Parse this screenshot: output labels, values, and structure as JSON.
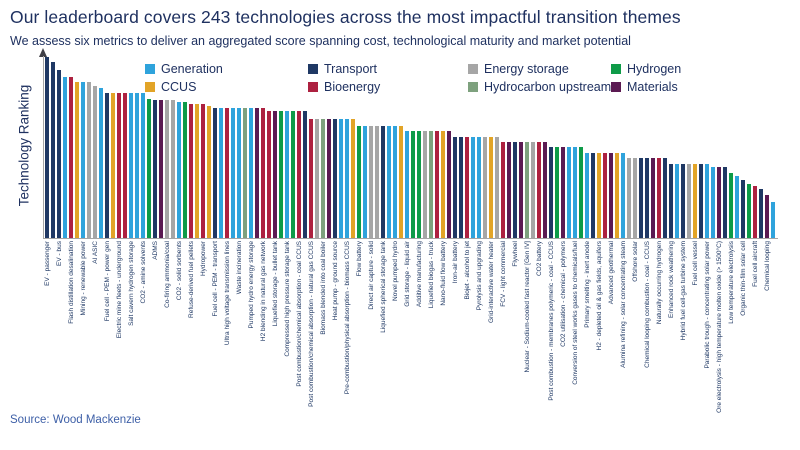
{
  "source": "Source: Wood Mackenzie",
  "chart_data": {
    "type": "bar",
    "title": "Our leaderboard covers 243 technologies across the most impactful transition themes",
    "subtitle": "We assess six metrics to deliver an aggregated score spanning cost, technological maturity and market potential",
    "ylabel": "Technology Ranking",
    "xlabel": "",
    "grid": "off",
    "legend_position": "top",
    "ylim": [
      0,
      100
    ],
    "note": "Scores are relative ranking heights (100 = top-ranked technology); axis has no numeric ticks",
    "legend": [
      {
        "key": "generation",
        "label": "Generation",
        "color": "#2FA3DC"
      },
      {
        "key": "transport",
        "label": "Transport",
        "color": "#1F3864"
      },
      {
        "key": "energy_storage",
        "label": "Energy storage",
        "color": "#A6A6A6"
      },
      {
        "key": "hydrogen",
        "label": "Hydrogen",
        "color": "#0E9B48"
      },
      {
        "key": "ccus",
        "label": "CCUS",
        "color": "#E2A427"
      },
      {
        "key": "bioenergy",
        "label": "Bioenergy",
        "color": "#AD2140"
      },
      {
        "key": "hydrocarbon_upstream",
        "label": "Hydrocarbon upstream",
        "color": "#7EA17E"
      },
      {
        "key": "materials",
        "label": "Materials",
        "color": "#5B1A52"
      }
    ],
    "bars": [
      {
        "label": "EV - passenger",
        "category": "transport",
        "score": 100
      },
      {
        "label": "",
        "category": "transport",
        "score": 97
      },
      {
        "label": "EV - bus",
        "category": "transport",
        "score": 93
      },
      {
        "label": "",
        "category": "generation",
        "score": 89
      },
      {
        "label": "Flash distillation desalination",
        "category": "bioenergy",
        "score": 89
      },
      {
        "label": "",
        "category": "ccus",
        "score": 86
      },
      {
        "label": "Mining - renewable power",
        "category": "generation",
        "score": 86
      },
      {
        "label": "",
        "category": "energy_storage",
        "score": 86
      },
      {
        "label": "AI ASIC",
        "category": "energy_storage",
        "score": 84
      },
      {
        "label": "",
        "category": "generation",
        "score": 83
      },
      {
        "label": "Fuel cell - PEM - power gen",
        "category": "transport",
        "score": 80
      },
      {
        "label": "",
        "category": "ccus",
        "score": 80
      },
      {
        "label": "Electric mine fleets - underground",
        "category": "bioenergy",
        "score": 80
      },
      {
        "label": "",
        "category": "bioenergy",
        "score": 80
      },
      {
        "label": "Salt cavern hydrogen storage",
        "category": "generation",
        "score": 80
      },
      {
        "label": "",
        "category": "generation",
        "score": 80
      },
      {
        "label": "CO2 - amine solvents",
        "category": "generation",
        "score": 80
      },
      {
        "label": "",
        "category": "hydrogen",
        "score": 77
      },
      {
        "label": "ADMS",
        "category": "transport",
        "score": 76
      },
      {
        "label": "",
        "category": "materials",
        "score": 76
      },
      {
        "label": "Co-firing ammonia/coal",
        "category": "energy_storage",
        "score": 76
      },
      {
        "label": "",
        "category": "energy_storage",
        "score": 76
      },
      {
        "label": "CO2 - solid sorbents",
        "category": "generation",
        "score": 75
      },
      {
        "label": "",
        "category": "hydrogen",
        "score": 75
      },
      {
        "label": "Refuse-derived fuel pellets",
        "category": "bioenergy",
        "score": 74
      },
      {
        "label": "",
        "category": "ccus",
        "score": 74
      },
      {
        "label": "Hydropower",
        "category": "bioenergy",
        "score": 74
      },
      {
        "label": "",
        "category": "ccus",
        "score": 73
      },
      {
        "label": "Fuel cell - PEM - transport",
        "category": "transport",
        "score": 72
      },
      {
        "label": "",
        "category": "generation",
        "score": 72
      },
      {
        "label": "Ultra high voltage transmission lines",
        "category": "bioenergy",
        "score": 72
      },
      {
        "label": "",
        "category": "generation",
        "score": 72
      },
      {
        "label": "Waste incineration",
        "category": "generation",
        "score": 72
      },
      {
        "label": "",
        "category": "hydrocarbon_upstream",
        "score": 72
      },
      {
        "label": "Pumped hydro energy storage",
        "category": "generation",
        "score": 72
      },
      {
        "label": "",
        "category": "materials",
        "score": 72
      },
      {
        "label": "H2 blending in natural gas network",
        "category": "bioenergy",
        "score": 72
      },
      {
        "label": "",
        "category": "bioenergy",
        "score": 70
      },
      {
        "label": "Liquefied storage - bullet tank",
        "category": "materials",
        "score": 70
      },
      {
        "label": "",
        "category": "hydrogen",
        "score": 70
      },
      {
        "label": "Compressed high pressure storage tank",
        "category": "generation",
        "score": 70
      },
      {
        "label": "",
        "category": "hydrogen",
        "score": 70
      },
      {
        "label": "Post combustion/chemical absorption - coal CCUS",
        "category": "bioenergy",
        "score": 70
      },
      {
        "label": "",
        "category": "transport",
        "score": 70
      },
      {
        "label": "Post combustion/chemical absorption - natural gas CCUS",
        "category": "bioenergy",
        "score": 66
      },
      {
        "label": "",
        "category": "energy_storage",
        "score": 66
      },
      {
        "label": "Biomass blended into coal boiler",
        "category": "hydrocarbon_upstream",
        "score": 66
      },
      {
        "label": "",
        "category": "materials",
        "score": 66
      },
      {
        "label": "Heat pump - ground source",
        "category": "transport",
        "score": 66
      },
      {
        "label": "",
        "category": "generation",
        "score": 66
      },
      {
        "label": "Pre-combustion/physical absorption - biomass CCUS",
        "category": "generation",
        "score": 66
      },
      {
        "label": "",
        "category": "ccus",
        "score": 66
      },
      {
        "label": "Flow battery",
        "category": "hydrogen",
        "score": 62
      },
      {
        "label": "",
        "category": "generation",
        "score": 62
      },
      {
        "label": "Direct air capture - solid",
        "category": "energy_storage",
        "score": 62
      },
      {
        "label": "",
        "category": "energy_storage",
        "score": 62
      },
      {
        "label": "Liquefied spherical storage tank",
        "category": "transport",
        "score": 62
      },
      {
        "label": "",
        "category": "generation",
        "score": 62
      },
      {
        "label": "Novel pumped hydro",
        "category": "generation",
        "score": 62
      },
      {
        "label": "",
        "category": "ccus",
        "score": 62
      },
      {
        "label": "Grid storage - liquid air",
        "category": "generation",
        "score": 59
      },
      {
        "label": "",
        "category": "hydrogen",
        "score": 59
      },
      {
        "label": "Additive manufacturing",
        "category": "hydrogen",
        "score": 59
      },
      {
        "label": "",
        "category": "energy_storage",
        "score": 59
      },
      {
        "label": "Liquefied biogas - truck",
        "category": "hydrocarbon_upstream",
        "score": 59
      },
      {
        "label": "",
        "category": "bioenergy",
        "score": 59
      },
      {
        "label": "Nano-fluid flow battery",
        "category": "ccus",
        "score": 59
      },
      {
        "label": "",
        "category": "materials",
        "score": 59
      },
      {
        "label": "Iron-air battery",
        "category": "transport",
        "score": 56
      },
      {
        "label": "",
        "category": "transport",
        "score": 56
      },
      {
        "label": "Biojet - alcohol to jet",
        "category": "bioenergy",
        "score": 56
      },
      {
        "label": "",
        "category": "generation",
        "score": 56
      },
      {
        "label": "Pyrolysis and upgrading",
        "category": "generation",
        "score": 56
      },
      {
        "label": "",
        "category": "energy_storage",
        "score": 56
      },
      {
        "label": "Grid-interactive water heater",
        "category": "ccus",
        "score": 56
      },
      {
        "label": "",
        "category": "energy_storage",
        "score": 56
      },
      {
        "label": "FCV - light commercial",
        "category": "bioenergy",
        "score": 53
      },
      {
        "label": "",
        "category": "materials",
        "score": 53
      },
      {
        "label": "Flywheel",
        "category": "transport",
        "score": 53
      },
      {
        "label": "",
        "category": "materials",
        "score": 53
      },
      {
        "label": "Nuclear - Sodium-cooled fast reactor [Gen IV]",
        "category": "hydrocarbon_upstream",
        "score": 53
      },
      {
        "label": "",
        "category": "energy_storage",
        "score": 53
      },
      {
        "label": "CO2 battery",
        "category": "bioenergy",
        "score": 53
      },
      {
        "label": "",
        "category": "materials",
        "score": 53
      },
      {
        "label": "Post combustion - membranes polymeric - coal - CCUS",
        "category": "transport",
        "score": 50
      },
      {
        "label": "",
        "category": "hydrogen",
        "score": 50
      },
      {
        "label": "CO2 utilisation - chemical - polymers",
        "category": "materials",
        "score": 50
      },
      {
        "label": "",
        "category": "generation",
        "score": 50
      },
      {
        "label": "Conversion of steel works gases to chemicals/fuel",
        "category": "generation",
        "score": 50
      },
      {
        "label": "",
        "category": "hydrogen",
        "score": 50
      },
      {
        "label": "Primary smelting - inert anode",
        "category": "generation",
        "score": 47
      },
      {
        "label": "",
        "category": "transport",
        "score": 47
      },
      {
        "label": "H2 - depleted oil & gas fields, aquifers",
        "category": "ccus",
        "score": 47
      },
      {
        "label": "",
        "category": "bioenergy",
        "score": 47
      },
      {
        "label": "Advanced geothermal",
        "category": "materials",
        "score": 47
      },
      {
        "label": "",
        "category": "ccus",
        "score": 47
      },
      {
        "label": "Alumina refining - solar concentrating steam",
        "category": "generation",
        "score": 47
      },
      {
        "label": "",
        "category": "energy_storage",
        "score": 44
      },
      {
        "label": "Offshore solar",
        "category": "energy_storage",
        "score": 44
      },
      {
        "label": "",
        "category": "transport",
        "score": 44
      },
      {
        "label": "Chemical looping combustion - coal - CCUS",
        "category": "transport",
        "score": 44
      },
      {
        "label": "",
        "category": "materials",
        "score": 44
      },
      {
        "label": "Naturally occurring hydrogen",
        "category": "bioenergy",
        "score": 44
      },
      {
        "label": "",
        "category": "transport",
        "score": 44
      },
      {
        "label": "Enhanced rock weathering",
        "category": "transport",
        "score": 41
      },
      {
        "label": "",
        "category": "generation",
        "score": 41
      },
      {
        "label": "Hybrid fuel cell-gas turbine system",
        "category": "transport",
        "score": 41
      },
      {
        "label": "",
        "category": "energy_storage",
        "score": 41
      },
      {
        "label": "Fuel cell vessel",
        "category": "ccus",
        "score": 41
      },
      {
        "label": "",
        "category": "transport",
        "score": 41
      },
      {
        "label": "Parabolic trough - concentrating solar power",
        "category": "generation",
        "score": 41
      },
      {
        "label": "",
        "category": "generation",
        "score": 39
      },
      {
        "label": "Ore electrolysis - high temperature molten oxide (> 1500°C)",
        "category": "materials",
        "score": 39
      },
      {
        "label": "",
        "category": "transport",
        "score": 39
      },
      {
        "label": "Low temperature electrolysis",
        "category": "hydrogen",
        "score": 36
      },
      {
        "label": "",
        "category": "generation",
        "score": 34
      },
      {
        "label": "Organic thin-film solar cell",
        "category": "transport",
        "score": 32
      },
      {
        "label": "",
        "category": "hydrogen",
        "score": 30
      },
      {
        "label": "Fuel cell aircraft",
        "category": "bioenergy",
        "score": 29
      },
      {
        "label": "",
        "category": "transport",
        "score": 27
      },
      {
        "label": "Chemical looping",
        "category": "materials",
        "score": 24
      },
      {
        "label": "",
        "category": "generation",
        "score": 20
      }
    ]
  }
}
